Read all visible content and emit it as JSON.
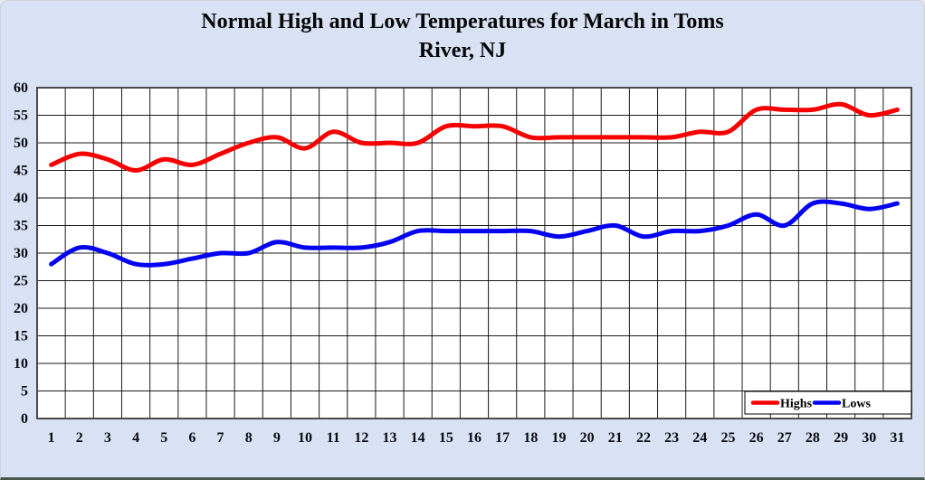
{
  "window": {
    "background_color": "#d9e2f4",
    "plot_background_color": "#ffffff",
    "grid_color": "#1a1a1a",
    "axis_text_color": "#0a0a12"
  },
  "chart_data": {
    "type": "line",
    "title": "Normal High and Low Temperatures for March in Toms River, NJ",
    "title_lines": [
      "Normal High and Low Temperatures for March in Toms",
      "River, NJ"
    ],
    "xlabel": "",
    "ylabel": "",
    "x": [
      1,
      2,
      3,
      4,
      5,
      6,
      7,
      8,
      9,
      10,
      11,
      12,
      13,
      14,
      15,
      16,
      17,
      18,
      19,
      20,
      21,
      22,
      23,
      24,
      25,
      26,
      27,
      28,
      29,
      30,
      31
    ],
    "series": [
      {
        "name": "Highs",
        "color": "#f60000",
        "values": [
          46,
          48,
          47,
          45,
          47,
          46,
          48,
          50,
          51,
          49,
          52,
          50,
          50,
          50,
          53,
          53,
          53,
          51,
          51,
          51,
          51,
          51,
          51,
          52,
          52,
          56,
          56,
          56,
          57,
          55,
          56
        ]
      },
      {
        "name": "Lows",
        "color": "#0404f0",
        "values": [
          28,
          31,
          30,
          28,
          28,
          29,
          30,
          30,
          32,
          31,
          31,
          31,
          32,
          34,
          34,
          34,
          34,
          34,
          33,
          34,
          35,
          33,
          34,
          34,
          35,
          37,
          35,
          39,
          39,
          38,
          39
        ]
      }
    ],
    "ylim": [
      0,
      60
    ],
    "ytick_step": 5,
    "yticks": [
      0,
      5,
      10,
      15,
      20,
      25,
      30,
      35,
      40,
      45,
      50,
      55,
      60
    ],
    "grid": "both",
    "smooth_lines": true,
    "legend": {
      "position": "inside-bottom-right",
      "background": "#ffffff",
      "border_color": "#000000",
      "entries": [
        "Highs",
        "Lows"
      ]
    }
  }
}
